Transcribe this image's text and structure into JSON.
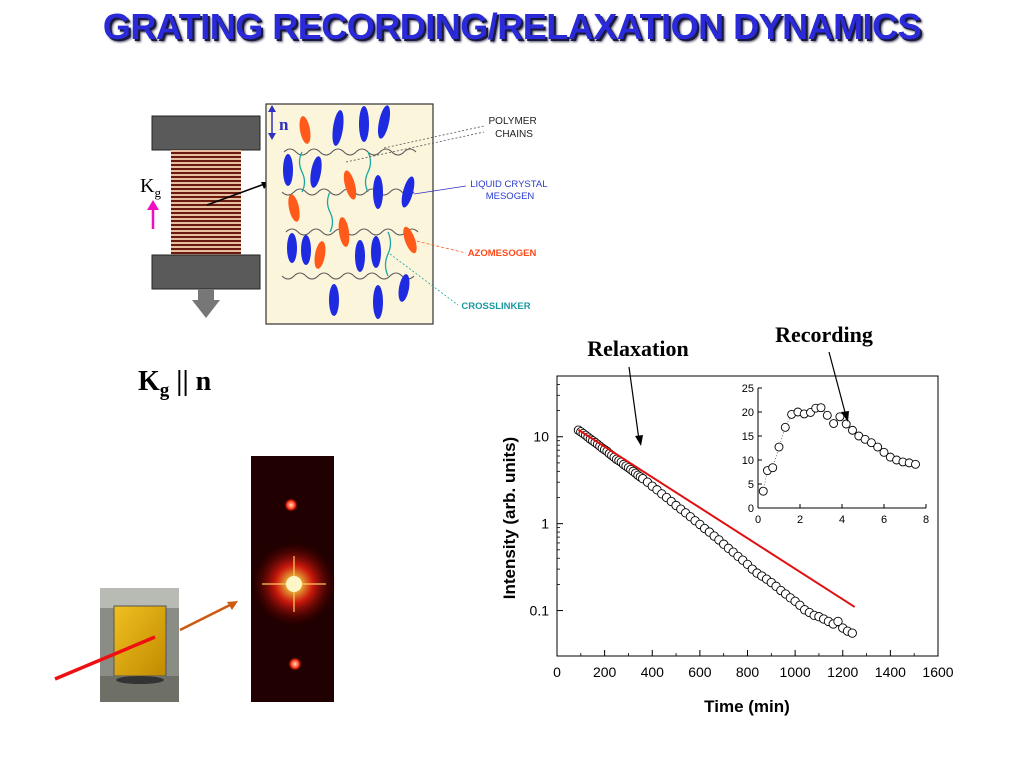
{
  "title": "GRATING RECORDING/RELAXATION DYNAMICS",
  "schematic": {
    "director_label": "n",
    "grating_label_main": "K",
    "grating_label_sub": "g",
    "legend": {
      "polymer": [
        "POLYMER",
        "CHAINS"
      ],
      "lc": [
        "LIQUID CRYSTAL",
        "MESOGEN"
      ],
      "azo": "AZOMESOGEN",
      "crosslinker": "CROSSLINKER"
    },
    "colors": {
      "lc": "#1f2be0",
      "azo": "#ff5a1a",
      "crosslinker": "#1aa8a0",
      "polymer": "#555555",
      "panel_bg": "#fbf5dc"
    }
  },
  "relation": {
    "main": "K",
    "sub": "g",
    "rest": " || n"
  },
  "annotations": {
    "relaxation": "Relaxation",
    "recording": "Recording"
  },
  "chart_data": [
    {
      "type": "scatter",
      "scale_y": "log",
      "xlabel": "Time (min)",
      "ylabel": "Intensity (arb. units)",
      "xlim": [
        0,
        1600
      ],
      "ylim": [
        0.03,
        50
      ],
      "x_ticks": [
        "0",
        "200",
        "400",
        "600",
        "800",
        "1000",
        "1200",
        "1400",
        "1600"
      ],
      "y_ticks": [
        "0.1",
        "1",
        "10"
      ],
      "series": [
        {
          "x": [
            90,
            100,
            110,
            120,
            130,
            140,
            150,
            160,
            170,
            180,
            190,
            200,
            210,
            220,
            230,
            240,
            250,
            260,
            270,
            280,
            290,
            300,
            310,
            320,
            330,
            340,
            350,
            360,
            380,
            400,
            420,
            440,
            460,
            480,
            500,
            520,
            540,
            560,
            580,
            600,
            620,
            640,
            660,
            680,
            700,
            720,
            740,
            760,
            780,
            800,
            820,
            840,
            860,
            880,
            900,
            920,
            940,
            960,
            980,
            1000,
            1020,
            1040,
            1060,
            1080,
            1100,
            1120,
            1140,
            1160,
            1180,
            1200,
            1220,
            1240
          ],
          "y": [
            11.9,
            11.4,
            10.9,
            10.4,
            9.9,
            9.4,
            9.0,
            8.6,
            8.2,
            7.8,
            7.4,
            7.1,
            6.8,
            6.4,
            6.1,
            5.8,
            5.5,
            5.3,
            5.1,
            4.8,
            4.6,
            4.4,
            4.2,
            4.0,
            3.8,
            3.6,
            3.45,
            3.3,
            3.0,
            2.7,
            2.45,
            2.2,
            2.0,
            1.8,
            1.62,
            1.47,
            1.33,
            1.2,
            1.08,
            0.98,
            0.88,
            0.8,
            0.72,
            0.65,
            0.58,
            0.52,
            0.47,
            0.42,
            0.38,
            0.34,
            0.3,
            0.27,
            0.25,
            0.23,
            0.21,
            0.19,
            0.17,
            0.155,
            0.14,
            0.128,
            0.115,
            0.102,
            0.095,
            0.088,
            0.085,
            0.08,
            0.075,
            0.07,
            0.075,
            0.063,
            0.058,
            0.055
          ]
        },
        {
          "x": [
            90,
            1250
          ],
          "y": [
            12.0,
            0.11
          ]
        }
      ]
    },
    {
      "type": "scatter",
      "xlim": [
        0,
        8
      ],
      "ylim": [
        0,
        25
      ],
      "x_ticks": [
        "0",
        "2",
        "4",
        "6",
        "8"
      ],
      "y_ticks": [
        "0",
        "5",
        "10",
        "15",
        "20",
        "25"
      ],
      "series": [
        {
          "x": [
            0.25,
            0.45,
            0.7,
            1.0,
            1.3,
            1.6,
            1.9,
            2.2,
            2.5,
            2.75,
            3.0,
            3.3,
            3.6,
            3.9,
            4.2,
            4.5,
            4.8,
            5.1,
            5.4,
            5.7,
            6.0,
            6.3,
            6.6,
            6.9,
            7.2,
            7.5
          ],
          "y": [
            3.5,
            7.8,
            8.4,
            12.7,
            16.8,
            19.5,
            20.0,
            19.6,
            19.9,
            20.8,
            20.9,
            19.3,
            17.6,
            19.0,
            17.5,
            16.2,
            15.0,
            14.3,
            13.6,
            12.7,
            11.6,
            10.6,
            10.0,
            9.6,
            9.4,
            9.1
          ]
        }
      ]
    }
  ]
}
